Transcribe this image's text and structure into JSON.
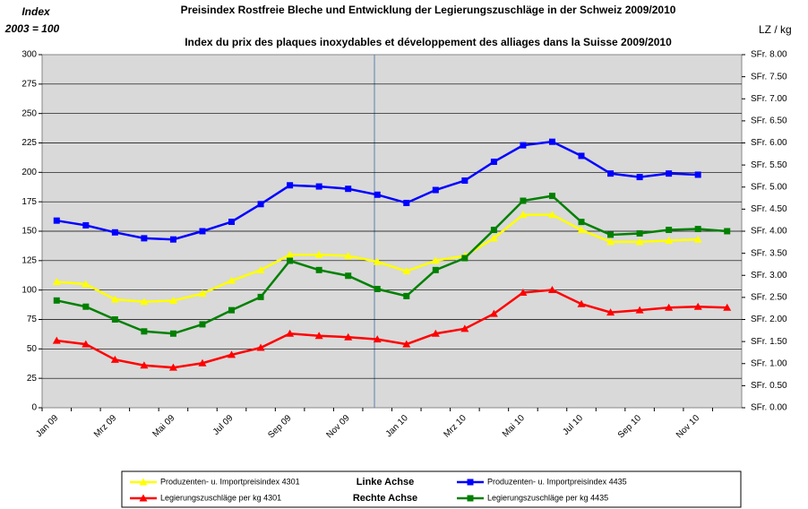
{
  "chart_data": {
    "type": "line",
    "title": "Preisindex Rostfreie Bleche und Entwicklung der Legierungszuschläge in der Schweiz 2009/2010",
    "subtitle": "Index du prix des plaques inoxydables et développement des alliages dans la Suisse 2009/2010",
    "y_label": [
      "Index",
      "2003 = 100"
    ],
    "y2_label": "LZ / kg",
    "legend_groups": [
      "Linke  Achse",
      "Rechte Achse"
    ],
    "categories": [
      "Jan 09",
      null,
      "Mrz 09",
      null,
      "Mai 09",
      null,
      "Jul 09",
      null,
      "Sep 09",
      null,
      "Nov 09",
      null,
      "Jan 10",
      null,
      "Mrz 10",
      null,
      "Mai 10",
      null,
      "Jul 10",
      null,
      "Sep 10",
      null,
      "Nov 10",
      null
    ],
    "ylim": [
      0,
      300
    ],
    "yticks": [
      0,
      25,
      50,
      75,
      100,
      125,
      150,
      175,
      200,
      225,
      250,
      275,
      300
    ],
    "y2lim": [
      0,
      8
    ],
    "y2ticks": [
      {
        "value": 0,
        "label": "SFr. 0.00"
      },
      {
        "value": 0.5,
        "label": "SFr. 0.50"
      },
      {
        "value": 1,
        "label": "SFr. 1.00"
      },
      {
        "value": 1.5,
        "label": "SFr. 1.50"
      },
      {
        "value": 2,
        "label": "SFr. 2.00"
      },
      {
        "value": 2.5,
        "label": "SFr. 2.50"
      },
      {
        "value": 3,
        "label": "SFr. 3.00"
      },
      {
        "value": 3.5,
        "label": "SFr. 3.50"
      },
      {
        "value": 4,
        "label": "SFr. 4.00"
      },
      {
        "value": 4.5,
        "label": "SFr. 4.50"
      },
      {
        "value": 5,
        "label": "SFr. 5.00"
      },
      {
        "value": 5.5,
        "label": "SFr. 5.50"
      },
      {
        "value": 6,
        "label": "SFr. 6.00"
      },
      {
        "value": 6.5,
        "label": "SFr. 6.50"
      },
      {
        "value": 7,
        "label": "SFr. 7.00"
      },
      {
        "value": 7.5,
        "label": "SFr. 7.50"
      },
      {
        "value": 8,
        "label": "SFr. 8.00"
      }
    ],
    "grid": true,
    "legend": "bottom",
    "series": [
      {
        "name": "Produzenten- u. Importpreisindex 4301",
        "color": "#ffff00",
        "marker": "triangle",
        "values": [
          107,
          105,
          92,
          90,
          91,
          97,
          108,
          117,
          130,
          130,
          129,
          124,
          116,
          125,
          129,
          144,
          164,
          164,
          151,
          141,
          141,
          142,
          143,
          null
        ]
      },
      {
        "name": "Produzenten- u. Importpreisindex 4435",
        "color": "#0000ff",
        "marker": "square",
        "values": [
          159,
          155,
          149,
          144,
          143,
          150,
          158,
          173,
          189,
          188,
          186,
          181,
          174,
          185,
          193,
          209,
          223,
          226,
          214,
          199,
          196,
          199,
          198,
          null
        ]
      },
      {
        "name": "Legierungszuschläge per kg 4301",
        "color": "#ff0000",
        "marker": "triangle",
        "axis": "y2",
        "values": [
          1.52,
          1.44,
          1.09,
          0.96,
          0.91,
          1.01,
          1.2,
          1.36,
          1.68,
          1.63,
          1.6,
          1.55,
          1.44,
          1.68,
          1.79,
          2.13,
          2.61,
          2.67,
          2.35,
          2.16,
          2.21,
          2.27,
          2.29,
          2.27
        ]
      },
      {
        "name": "Legierungszuschläge per kg 4435",
        "color": "#008000",
        "marker": "square",
        "axis": "y2",
        "values": [
          2.43,
          2.29,
          2,
          1.73,
          1.68,
          1.89,
          2.21,
          2.51,
          3.33,
          3.12,
          2.99,
          2.69,
          2.53,
          3.12,
          3.39,
          4.03,
          4.69,
          4.8,
          4.21,
          3.92,
          3.95,
          4.03,
          4.05,
          4
        ]
      }
    ]
  }
}
